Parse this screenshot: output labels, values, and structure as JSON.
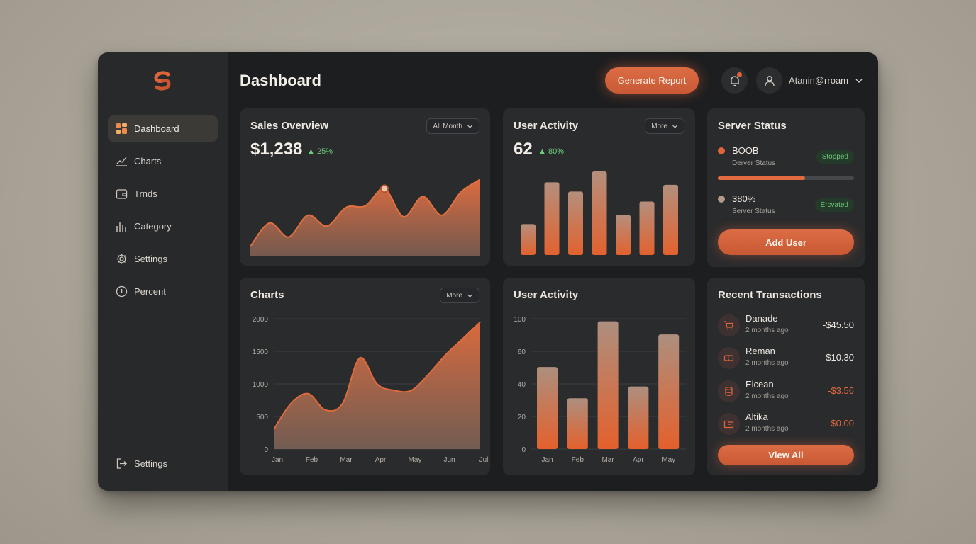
{
  "colors": {
    "accent": "#e0643b",
    "success": "#6cc47a",
    "background": "#1d1e20",
    "card": "#2a2b2d"
  },
  "sidebar": {
    "logo_icon": "logo-swirl-icon",
    "items": [
      {
        "label": "Dashboard",
        "icon": "grid-icon",
        "active": true
      },
      {
        "label": "Charts",
        "icon": "line-chart-icon"
      },
      {
        "label": "Trnds",
        "icon": "wallet-icon"
      },
      {
        "label": "Category",
        "icon": "bar-chart-icon"
      },
      {
        "label": "Settings",
        "icon": "gear-icon"
      },
      {
        "label": "Percent",
        "icon": "info-icon"
      }
    ],
    "footer": {
      "label": "Settings",
      "icon": "logout-icon"
    }
  },
  "header": {
    "title": "Dashboard",
    "generate_label": "Generate Report",
    "user_name": "Atanin@rroam"
  },
  "sales": {
    "title": "Sales Overview",
    "filter": "All Month",
    "value": "$1,238",
    "delta": "25%"
  },
  "activity_top": {
    "title": "User Activity",
    "filter": "More",
    "value": "62",
    "delta": "80%"
  },
  "server": {
    "title": "Server Status",
    "items": [
      {
        "name": "BOOB",
        "sub": "Derver Status",
        "badge": "Stopped",
        "color": "#e0643b"
      },
      {
        "name": "380%",
        "sub": "Server Status",
        "badge": "Ercvated",
        "color": "#b49a8a"
      }
    ],
    "progress": 0.64,
    "add_label": "Add User"
  },
  "charts_card": {
    "title": "Charts",
    "filter": "More"
  },
  "activity_bottom": {
    "title": "User Activity"
  },
  "transactions": {
    "title": "Recent Transactions",
    "items": [
      {
        "name": "Danade",
        "time": "2 months ago",
        "amount": "-$45.50",
        "icon": "cart-icon",
        "color": "#ece7e0"
      },
      {
        "name": "Reman",
        "time": "2 months ago",
        "amount": "-$10.30",
        "icon": "ticket-icon",
        "color": "#ece7e0"
      },
      {
        "name": "Eicean",
        "time": "2 months ago",
        "amount": "-$3.56",
        "icon": "database-icon",
        "color": "#e2683f"
      },
      {
        "name": "Altika",
        "time": "2 months ago",
        "amount": "-$0.00",
        "icon": "folder-icon",
        "color": "#e2683f"
      }
    ],
    "view_all_label": "View All"
  },
  "chart_data": [
    {
      "type": "area",
      "title": "Sales Overview",
      "x": [
        0,
        1,
        2,
        3,
        4,
        5,
        6,
        7,
        8,
        9,
        10,
        11,
        12
      ],
      "values": [
        12,
        42,
        24,
        52,
        38,
        62,
        64,
        86,
        50,
        76,
        52,
        82,
        98
      ],
      "ylim": [
        0,
        100
      ],
      "highlight_index": 7,
      "grid": false
    },
    {
      "type": "bar",
      "title": "User Activity",
      "values": [
        37,
        87,
        76,
        100,
        48,
        64,
        84
      ],
      "ylim": [
        0,
        100
      ],
      "grid": false
    },
    {
      "type": "area",
      "title": "Charts",
      "categories": [
        "Jan",
        "Feb",
        "Mar",
        "Apr",
        "May",
        "Jun",
        "Jul"
      ],
      "x": [
        0,
        0.5,
        1,
        1.5,
        2,
        2.5,
        3,
        3.5,
        4,
        4.5,
        5,
        5.5,
        6
      ],
      "values": [
        300,
        700,
        850,
        600,
        700,
        1400,
        1000,
        900,
        900,
        1150,
        1450,
        1700,
        1950
      ],
      "yticks": [
        0,
        500,
        1000,
        1500,
        2000
      ],
      "ylim": [
        0,
        2000
      ],
      "grid": true
    },
    {
      "type": "bar",
      "title": "User Activity",
      "categories": [
        "Jan",
        "Feb",
        "Mar",
        "Apr",
        "May"
      ],
      "values": [
        63,
        39,
        98,
        48,
        88
      ],
      "yticks": [
        0,
        20,
        40,
        60,
        100
      ],
      "ylim": [
        0,
        100
      ],
      "grid": true
    }
  ]
}
